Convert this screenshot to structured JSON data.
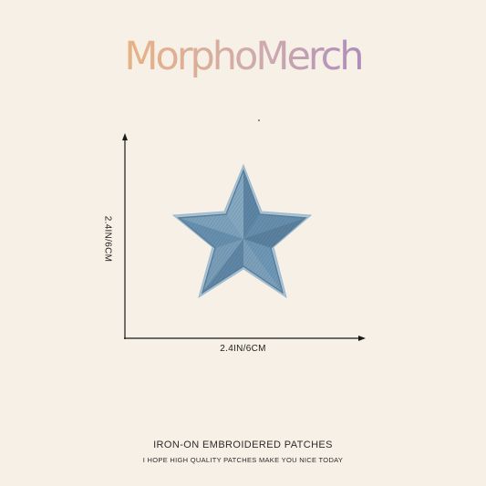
{
  "brand": {
    "name": "MorphoMerch"
  },
  "product": {
    "height_label": "2.4IN/6CM",
    "width_label": "2.4IN/6CM",
    "headline": "IRON-ON EMBROIDERED PATCHES",
    "tagline": "I HOPE HIGH QUALITY PATCHES MAKE YOU NICE TODAY",
    "patch_shape": "star-icon",
    "patch_color": "#6f98b6"
  }
}
